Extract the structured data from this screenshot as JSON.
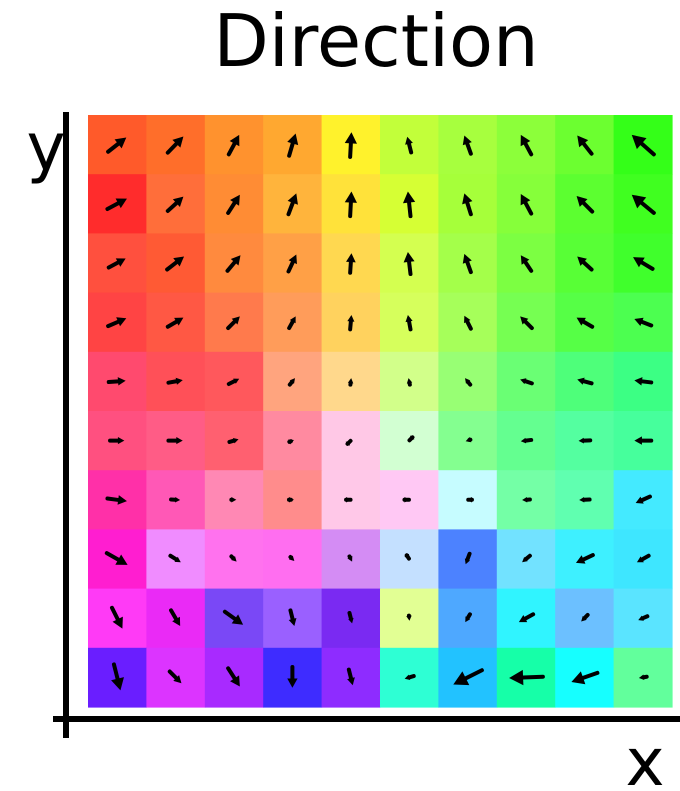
{
  "title": "Direction",
  "xlabel": "x",
  "ylabel": "y",
  "grid": {
    "rows": 10,
    "cols": 10,
    "cells": [
      [
        "#ff5a2a",
        "#ff6e2a",
        "#ff922e",
        "#ffa830",
        "#fff22c",
        "#c2ff3a",
        "#a7ff3e",
        "#8cff3a",
        "#6cff30",
        "#34ff18"
      ],
      [
        "#ff2c2c",
        "#ff6e3a",
        "#ff8c34",
        "#ffb43c",
        "#ffe23a",
        "#d6ff34",
        "#a6ff3a",
        "#86ff3a",
        "#5cff30",
        "#40ff20"
      ],
      [
        "#ff503e",
        "#ff5a34",
        "#ff8a3e",
        "#ffa046",
        "#ffd850",
        "#d4ff50",
        "#a4ff4a",
        "#7cff42",
        "#58ff36",
        "#40ff2c"
      ],
      [
        "#ff4444",
        "#ff5844",
        "#ff7a4c",
        "#ff9c5a",
        "#ffd25e",
        "#d6ff5c",
        "#a6ff5a",
        "#76ff52",
        "#56ff46",
        "#4cff50"
      ],
      [
        "#ff4a6e",
        "#ff5058",
        "#ff585c",
        "#ffa47e",
        "#ffd88c",
        "#d2ff8a",
        "#98ff74",
        "#6aff74",
        "#4eff7a",
        "#3cff84"
      ],
      [
        "#ff5080",
        "#ff5c86",
        "#ff6070",
        "#ff8aa0",
        "#ffc8e6",
        "#d2ffd2",
        "#84ff90",
        "#64ff90",
        "#54ffa0",
        "#46ff9c"
      ],
      [
        "#ff30a8",
        "#ff58b6",
        "#ff88b4",
        "#ff8c8c",
        "#ffc8e8",
        "#ffc8f4",
        "#c6fcff",
        "#74ffa6",
        "#60ffb0",
        "#44eaff"
      ],
      [
        "#ff1ed0",
        "#f08cff",
        "#ff72ee",
        "#ff6ef0",
        "#d48cf4",
        "#c4e0ff",
        "#4c82ff",
        "#72e2ff",
        "#3ef0ff",
        "#3ee6ff"
      ],
      [
        "#ff3af6",
        "#ea2af6",
        "#7a48f6",
        "#9a60ff",
        "#7a2af2",
        "#e2ff94",
        "#4ea8ff",
        "#30f4ff",
        "#6cc0ff",
        "#5ae4ff"
      ],
      [
        "#6a1eff",
        "#dc34ff",
        "#a82aff",
        "#3e2cff",
        "#8e2cff",
        "#2effd4",
        "#22c2ff",
        "#16ffa8",
        "#16ffff",
        "#62ff9c"
      ]
    ]
  },
  "vectors": [
    [
      [
        0.7,
        -0.55
      ],
      [
        0.6,
        -0.62
      ],
      [
        0.4,
        -0.75
      ],
      [
        0.25,
        -0.85
      ],
      [
        0.05,
        -0.95
      ],
      [
        -0.15,
        -0.6
      ],
      [
        -0.25,
        -0.7
      ],
      [
        -0.4,
        -0.75
      ],
      [
        -0.55,
        -0.7
      ],
      [
        -0.85,
        -0.75
      ]
    ],
    [
      [
        0.75,
        -0.4
      ],
      [
        0.6,
        -0.55
      ],
      [
        0.45,
        -0.7
      ],
      [
        0.3,
        -0.8
      ],
      [
        0.05,
        -0.95
      ],
      [
        -0.1,
        -0.95
      ],
      [
        -0.25,
        -0.8
      ],
      [
        -0.4,
        -0.75
      ],
      [
        -0.6,
        -0.6
      ],
      [
        -0.85,
        -0.7
      ]
    ],
    [
      [
        0.65,
        -0.35
      ],
      [
        0.65,
        -0.5
      ],
      [
        0.5,
        -0.6
      ],
      [
        0.3,
        -0.65
      ],
      [
        0.05,
        -0.75
      ],
      [
        -0.1,
        -0.85
      ],
      [
        -0.25,
        -0.7
      ],
      [
        -0.4,
        -0.6
      ],
      [
        -0.55,
        -0.5
      ],
      [
        -0.75,
        -0.45
      ]
    ],
    [
      [
        0.7,
        -0.3
      ],
      [
        0.6,
        -0.35
      ],
      [
        0.45,
        -0.45
      ],
      [
        0.25,
        -0.45
      ],
      [
        0.05,
        -0.55
      ],
      [
        -0.1,
        -0.55
      ],
      [
        -0.25,
        -0.5
      ],
      [
        -0.45,
        -0.45
      ],
      [
        -0.6,
        -0.35
      ],
      [
        -0.65,
        -0.25
      ]
    ],
    [
      [
        0.65,
        -0.05
      ],
      [
        0.55,
        -0.1
      ],
      [
        0.4,
        -0.2
      ],
      [
        0.2,
        -0.25
      ],
      [
        0.03,
        -0.25
      ],
      [
        -0.05,
        -0.25
      ],
      [
        -0.2,
        -0.25
      ],
      [
        -0.45,
        -0.15
      ],
      [
        -0.55,
        -0.15
      ],
      [
        -0.65,
        -0.08
      ]
    ],
    [
      [
        0.55,
        0.0
      ],
      [
        0.55,
        0.0
      ],
      [
        0.35,
        -0.1
      ],
      [
        0.12,
        -0.05
      ],
      [
        0.02,
        -0.02
      ],
      [
        -0.02,
        0.02
      ],
      [
        -0.15,
        0.05
      ],
      [
        -0.4,
        0.05
      ],
      [
        -0.45,
        0.02
      ],
      [
        -0.65,
        0.0
      ]
    ],
    [
      [
        0.75,
        0.1
      ],
      [
        0.35,
        0.02
      ],
      [
        0.18,
        0.0
      ],
      [
        0.12,
        0.0
      ],
      [
        0.02,
        0.0
      ],
      [
        0.02,
        0.0
      ],
      [
        -0.05,
        0.0
      ],
      [
        -0.3,
        0.02
      ],
      [
        -0.4,
        0.02
      ],
      [
        -0.55,
        0.25
      ]
    ],
    [
      [
        0.8,
        0.45
      ],
      [
        0.4,
        0.25
      ],
      [
        0.2,
        0.2
      ],
      [
        0.15,
        0.15
      ],
      [
        0.1,
        0.2
      ],
      [
        0.02,
        0.03
      ],
      [
        -0.15,
        0.4
      ],
      [
        -0.3,
        0.25
      ],
      [
        -0.65,
        0.3
      ],
      [
        -0.45,
        0.25
      ]
    ],
    [
      [
        0.4,
        0.8
      ],
      [
        0.35,
        0.6
      ],
      [
        0.7,
        0.5
      ],
      [
        0.15,
        0.6
      ],
      [
        0.1,
        0.4
      ],
      [
        0.02,
        0.2
      ],
      [
        -0.18,
        0.3
      ],
      [
        -0.55,
        0.3
      ],
      [
        -0.25,
        0.25
      ],
      [
        -0.35,
        0.15
      ]
    ],
    [
      [
        0.25,
        1.0
      ],
      [
        0.45,
        0.45
      ],
      [
        0.45,
        0.7
      ],
      [
        0.0,
        0.8
      ],
      [
        0.15,
        0.6
      ],
      [
        -0.35,
        0.1
      ],
      [
        -1.1,
        0.55
      ],
      [
        -1.3,
        0.05
      ],
      [
        -1.0,
        0.35
      ],
      [
        -0.3,
        0.05
      ]
    ]
  ]
}
